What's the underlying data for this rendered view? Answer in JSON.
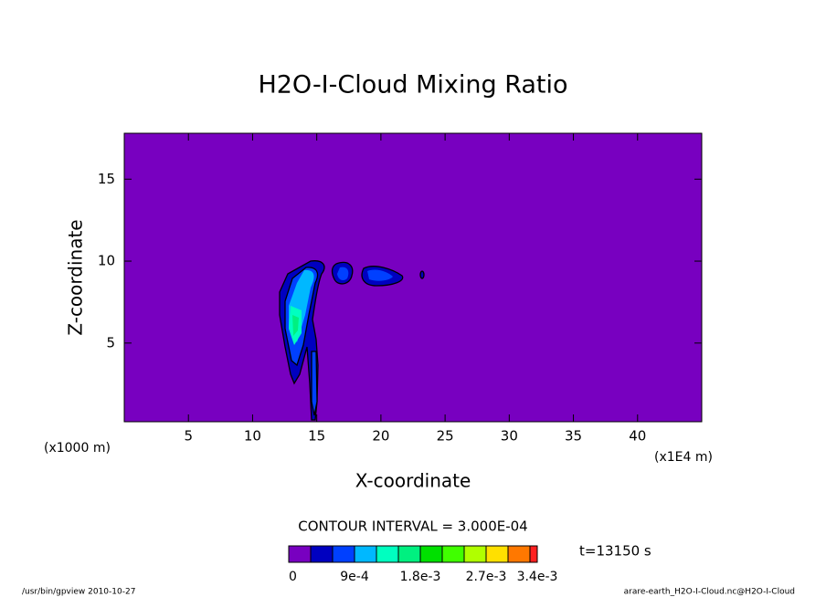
{
  "chart_data": {
    "type": "contour",
    "title": "H2O-I-Cloud Mixing Ratio",
    "xlabel": "X-coordinate",
    "ylabel": "Z-coordinate",
    "x_unit": "(x1E4 m)",
    "y_unit": "(x1000 m)",
    "xlim": [
      0,
      45
    ],
    "ylim": [
      0.2,
      17.8
    ],
    "xticks": [
      5,
      10,
      15,
      20,
      25,
      30,
      35,
      40
    ],
    "yticks": [
      5,
      10,
      15
    ],
    "contour_interval": "CONTOUR INTERVAL = 3.000E-04",
    "time": "t=13150 s",
    "levels": [
      0,
      0.0003,
      0.0006,
      0.0009,
      0.0012,
      0.0015,
      0.0018,
      0.0021,
      0.0024,
      0.0027,
      0.003,
      0.0033,
      0.0034
    ],
    "colors": [
      "#7800c0",
      "#0000c0",
      "#0040ff",
      "#00b8ff",
      "#00ffc0",
      "#00f080",
      "#00e000",
      "#40ff00",
      "#b0ff00",
      "#ffe000",
      "#ff7800",
      "#ff2020",
      "#ffb0b0"
    ],
    "colorbar_ticks": [
      {
        "value": 0,
        "label": "0"
      },
      {
        "value": 0.0009,
        "label": "9e-4"
      },
      {
        "value": 0.0018,
        "label": "1.8e-3"
      },
      {
        "value": 0.0027,
        "label": "2.7e-3"
      },
      {
        "value": 0.0034,
        "label": "3.4e-3"
      }
    ],
    "footer_left": "/usr/bin/gpview  2010-10-27",
    "footer_right": "arare-earth_H2O-I-Cloud.nc@H2O-I-Cloud"
  }
}
